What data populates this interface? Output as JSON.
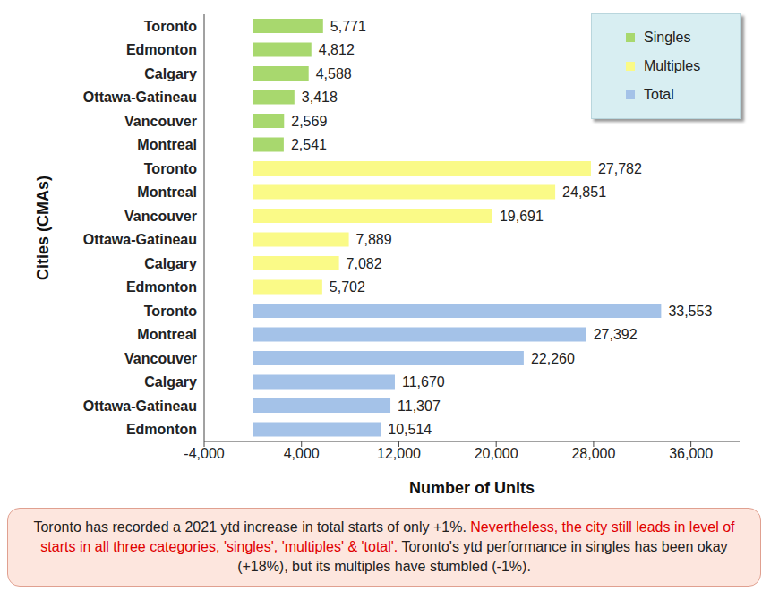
{
  "chart_data": {
    "type": "bar",
    "orientation": "horizontal",
    "stacked": true,
    "data_labels": true,
    "grid": false,
    "legend": "upper right",
    "x_label": "Number of Units",
    "y_label": "Cities (CMAs)",
    "categories": [
      "Toronto",
      "Edmonton",
      "Calgary",
      "Ottawa-Gatineau",
      "Vancouver",
      "Montreal",
      "Toronto",
      "Montreal",
      "Vancouver",
      "Ottawa-Gatineau",
      "Calgary",
      "Edmonton",
      "Toronto",
      "Montreal",
      "Vancouver",
      "Calgary",
      "Ottawa-Gatineau",
      "Edmonton"
    ],
    "series": [
      {
        "name": "Singles",
        "color": "#a8d86e",
        "values": [
          5771,
          4812,
          4588,
          3418,
          2569,
          2541,
          null,
          null,
          null,
          null,
          null,
          null,
          null,
          null,
          null,
          null,
          null,
          null
        ],
        "value_labels": [
          "5,771",
          "4,812",
          "4,588",
          "3,418",
          "2,569",
          "2,541",
          null,
          null,
          null,
          null,
          null,
          null,
          null,
          null,
          null,
          null,
          null,
          null
        ]
      },
      {
        "name": "Multiples",
        "color": "#fafa87",
        "values": [
          null,
          null,
          null,
          null,
          null,
          null,
          27782,
          24851,
          19691,
          7889,
          7082,
          5702,
          null,
          null,
          null,
          null,
          null,
          null
        ],
        "value_labels": [
          null,
          null,
          null,
          null,
          null,
          null,
          "27,782",
          "24,851",
          "19,691",
          "7,889",
          "7,082",
          "5,702",
          null,
          null,
          null,
          null,
          null,
          null
        ]
      },
      {
        "name": "Total",
        "color": "#a4c2e8",
        "values": [
          null,
          null,
          null,
          null,
          null,
          null,
          null,
          null,
          null,
          null,
          null,
          null,
          33553,
          27392,
          22260,
          11670,
          11307,
          10514
        ],
        "value_labels": [
          null,
          null,
          null,
          null,
          null,
          null,
          null,
          null,
          null,
          null,
          null,
          null,
          "33,553",
          "27,392",
          "22,260",
          "11,670",
          "11,307",
          "10,514"
        ]
      }
    ],
    "xlim": [
      -4000,
      40000
    ],
    "xticks": [
      {
        "value": -4000,
        "label": "-4,000"
      },
      {
        "value": 4000,
        "label": "4,000"
      },
      {
        "value": 12000,
        "label": "12,000"
      },
      {
        "value": 20000,
        "label": "20,000"
      },
      {
        "value": 28000,
        "label": "28,000"
      },
      {
        "value": 36000,
        "label": "36,000"
      }
    ],
    "annotation": [
      "Toronto has recorded a 2021 ytd increase in total starts of only +1%. ",
      "Nevertheless, the city still leads in level of starts in all three categories, 'singles', 'multiples' & 'total'.",
      " Toronto's ytd performance in singles has been okay (+18%), but its multiples have stumbled (-1%)."
    ]
  }
}
